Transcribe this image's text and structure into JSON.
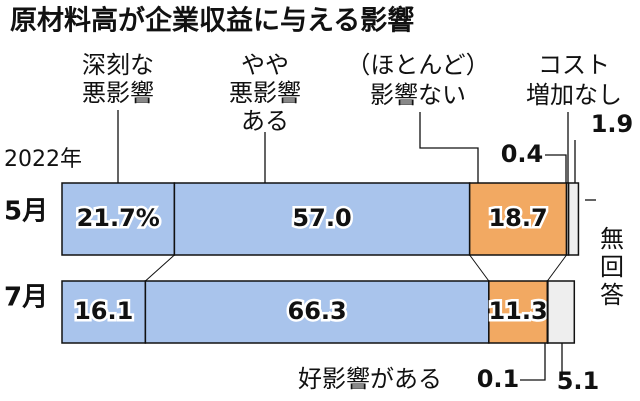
{
  "chart_data": {
    "type": "stacked-bar-horizontal",
    "title": "原材料高が企業収益に与える影響",
    "year_label": "2022年",
    "categories": [
      "5月",
      "7月"
    ],
    "xlim": [
      0,
      100
    ],
    "series": [
      {
        "name": "深刻な\n悪影響",
        "color": "#a9c4ec",
        "values": [
          21.7,
          16.1
        ],
        "value_labels": [
          "21.7%",
          "16.1"
        ]
      },
      {
        "name": "やや\n悪影響\nある",
        "color": "#a9c4ec",
        "values": [
          57.0,
          66.3
        ],
        "value_labels": [
          "57.0",
          "66.3"
        ]
      },
      {
        "name": "（ほとんど）\n影響ない",
        "color": "#f2a962",
        "values": [
          18.7,
          11.3
        ],
        "value_labels": [
          "18.7",
          "11.3"
        ]
      },
      {
        "name": "好影響がある",
        "color": "#ffffff",
        "values": [
          null,
          0.1
        ],
        "value_labels": [
          null,
          "0.1"
        ]
      },
      {
        "name": "コスト\n増加なし",
        "color": "#ffffff",
        "values": [
          0.4,
          null
        ],
        "value_labels": [
          "0.4",
          null
        ]
      },
      {
        "name": "無\n回\n答",
        "color": "#eeeeee",
        "values": [
          1.9,
          5.1
        ],
        "value_labels": [
          "1.9",
          "5.1"
        ]
      }
    ]
  }
}
